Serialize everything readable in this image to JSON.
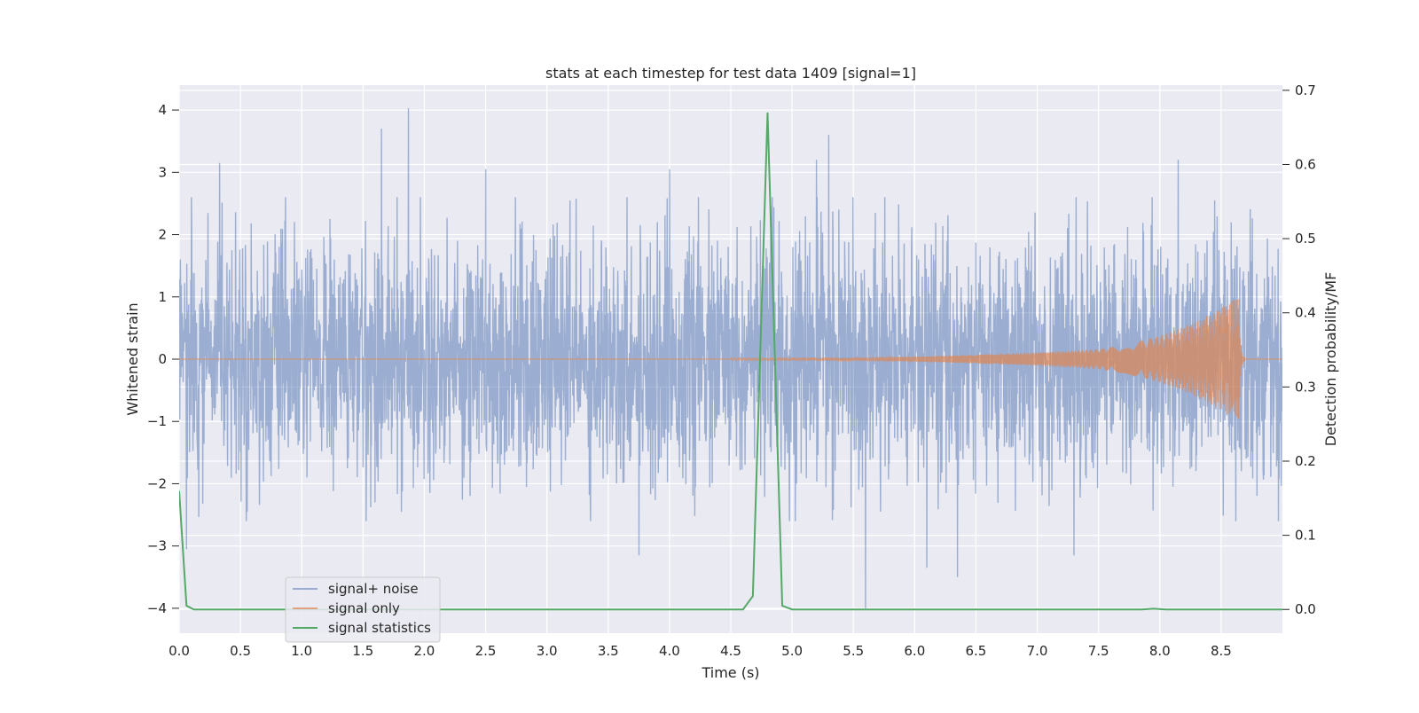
{
  "chart_data": {
    "type": "line",
    "title": "stats at each timestep for test data 1409 [signal=1]",
    "xlabel": "Time (s)",
    "ylabel_left": "Whitened strain",
    "ylabel_right": "Detection probability/MF",
    "xlim": [
      0.0,
      9.0
    ],
    "ylim_left": [
      -4.4,
      4.4
    ],
    "ylim_right": [
      -0.032,
      0.707
    ],
    "x_ticks": [
      0.0,
      0.5,
      1.0,
      1.5,
      2.0,
      2.5,
      3.0,
      3.5,
      4.0,
      4.5,
      5.0,
      5.5,
      6.0,
      6.5,
      7.0,
      7.5,
      8.0,
      8.5
    ],
    "x_tick_labels": [
      "0.0",
      "0.5",
      "1.0",
      "1.5",
      "2.0",
      "2.5",
      "3.0",
      "3.5",
      "4.0",
      "4.5",
      "5.0",
      "5.5",
      "6.0",
      "6.5",
      "7.0",
      "7.5",
      "8.0",
      "8.5"
    ],
    "y_left_ticks": [
      -4,
      -3,
      -2,
      -1,
      0,
      1,
      2,
      3,
      4
    ],
    "y_left_tick_labels": [
      "−4",
      "−3",
      "−2",
      "−1",
      "0",
      "1",
      "2",
      "3",
      "4"
    ],
    "y_right_ticks": [
      0.0,
      0.1,
      0.2,
      0.3,
      0.4,
      0.5,
      0.6,
      0.7
    ],
    "y_right_tick_labels": [
      "0.0",
      "0.1",
      "0.2",
      "0.3",
      "0.4",
      "0.5",
      "0.6",
      "0.7"
    ],
    "grid": true,
    "legend_position": "lower-left",
    "colors": {
      "background": "#eaeaf2",
      "grid": "#ffffff",
      "noise": "#4c72b0",
      "signal": "#dd8452",
      "stats": "#55a868"
    },
    "series": [
      {
        "name": "signal+ noise",
        "axis": "left",
        "kind": "noise",
        "approx_std": 0.95,
        "peaks": [
          {
            "x": 0.33,
            "y": 3.15
          },
          {
            "x": 1.65,
            "y": 3.7
          },
          {
            "x": 1.87,
            "y": 4.03
          },
          {
            "x": 2.5,
            "y": 3.05
          },
          {
            "x": 4.0,
            "y": 3.05
          },
          {
            "x": 5.2,
            "y": 3.2
          },
          {
            "x": 5.3,
            "y": 3.6
          },
          {
            "x": 6.35,
            "y": 3.25
          },
          {
            "x": 8.15,
            "y": 3.2
          },
          {
            "x": 3.75,
            "y": -3.15
          },
          {
            "x": 5.6,
            "y": -4.0
          },
          {
            "x": 6.1,
            "y": -3.35
          },
          {
            "x": 6.35,
            "y": -3.5
          },
          {
            "x": 7.3,
            "y": -3.15
          },
          {
            "x": 0.06,
            "y": -3.05
          }
        ]
      },
      {
        "name": "signal only",
        "axis": "left",
        "kind": "chirp",
        "start_x": 4.5,
        "merger_x": 8.65,
        "merger_amplitude": 1.02,
        "amplitude_at_start": 0.02,
        "end_x": 8.7
      },
      {
        "name": "signal statistics",
        "axis": "right",
        "kind": "line",
        "x": [
          0.0,
          0.06,
          0.12,
          4.6,
          4.68,
          4.8,
          4.92,
          5.0,
          7.85,
          7.95,
          8.05,
          9.0
        ],
        "y": [
          0.16,
          0.005,
          0.0,
          0.0,
          0.018,
          0.67,
          0.005,
          0.0,
          0.0,
          0.001,
          0.0,
          0.0
        ]
      }
    ]
  }
}
